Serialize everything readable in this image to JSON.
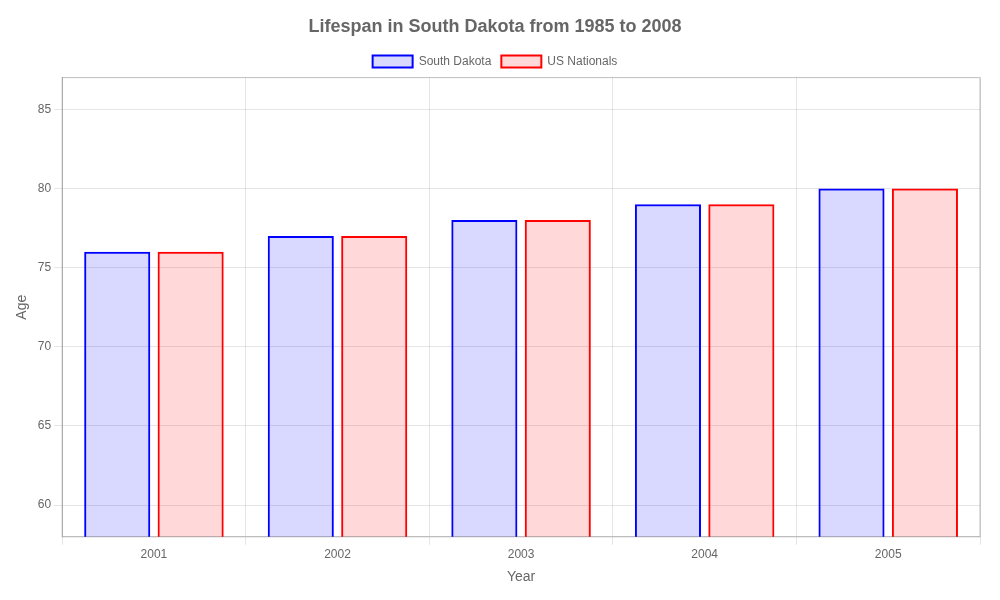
{
  "chart_data": {
    "type": "bar",
    "title": "Lifespan in South Dakota from 1985 to 2008",
    "xlabel": "Year",
    "ylabel": "Age",
    "categories": [
      "2001",
      "2002",
      "2003",
      "2004",
      "2005"
    ],
    "series": [
      {
        "name": "South Dakota",
        "color": "#0000ff",
        "values": [
          76,
          77,
          78,
          79,
          80
        ]
      },
      {
        "name": "US Nationals",
        "color": "#ff0000",
        "values": [
          76,
          77,
          78,
          79,
          80
        ]
      }
    ],
    "ylim": [
      58,
      87
    ],
    "yticks": [
      60,
      65,
      70,
      75,
      80,
      85
    ],
    "grid": true,
    "legend": "top"
  }
}
